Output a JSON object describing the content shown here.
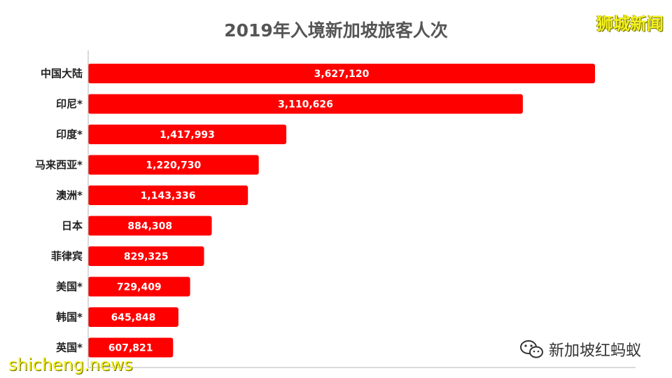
{
  "watermark": {
    "top_right": "狮城新闻",
    "bottom_left": "shicheng.news",
    "wechat": "新加坡红蚂蚁"
  },
  "chart_data": {
    "type": "bar",
    "orientation": "horizontal",
    "title": "2019年入境新加坡旅客人次",
    "categories": [
      "中国大陆",
      "印尼*",
      "印度*",
      "马来西亚*",
      "澳洲*",
      "日本",
      "菲律宾",
      "美国*",
      "韩国*",
      "英国*"
    ],
    "values": [
      3627120,
      3110626,
      1417993,
      1220730,
      1143336,
      884308,
      829325,
      729409,
      645848,
      607821
    ],
    "value_labels": [
      "3,627,120",
      "3,110,626",
      "1,417,993",
      "1,220,730",
      "1,143,336",
      "884,308",
      "829,325",
      "729,409",
      "645,848",
      "607,821"
    ],
    "bar_color": "#ff0000",
    "grid": false,
    "legend": "none"
  }
}
